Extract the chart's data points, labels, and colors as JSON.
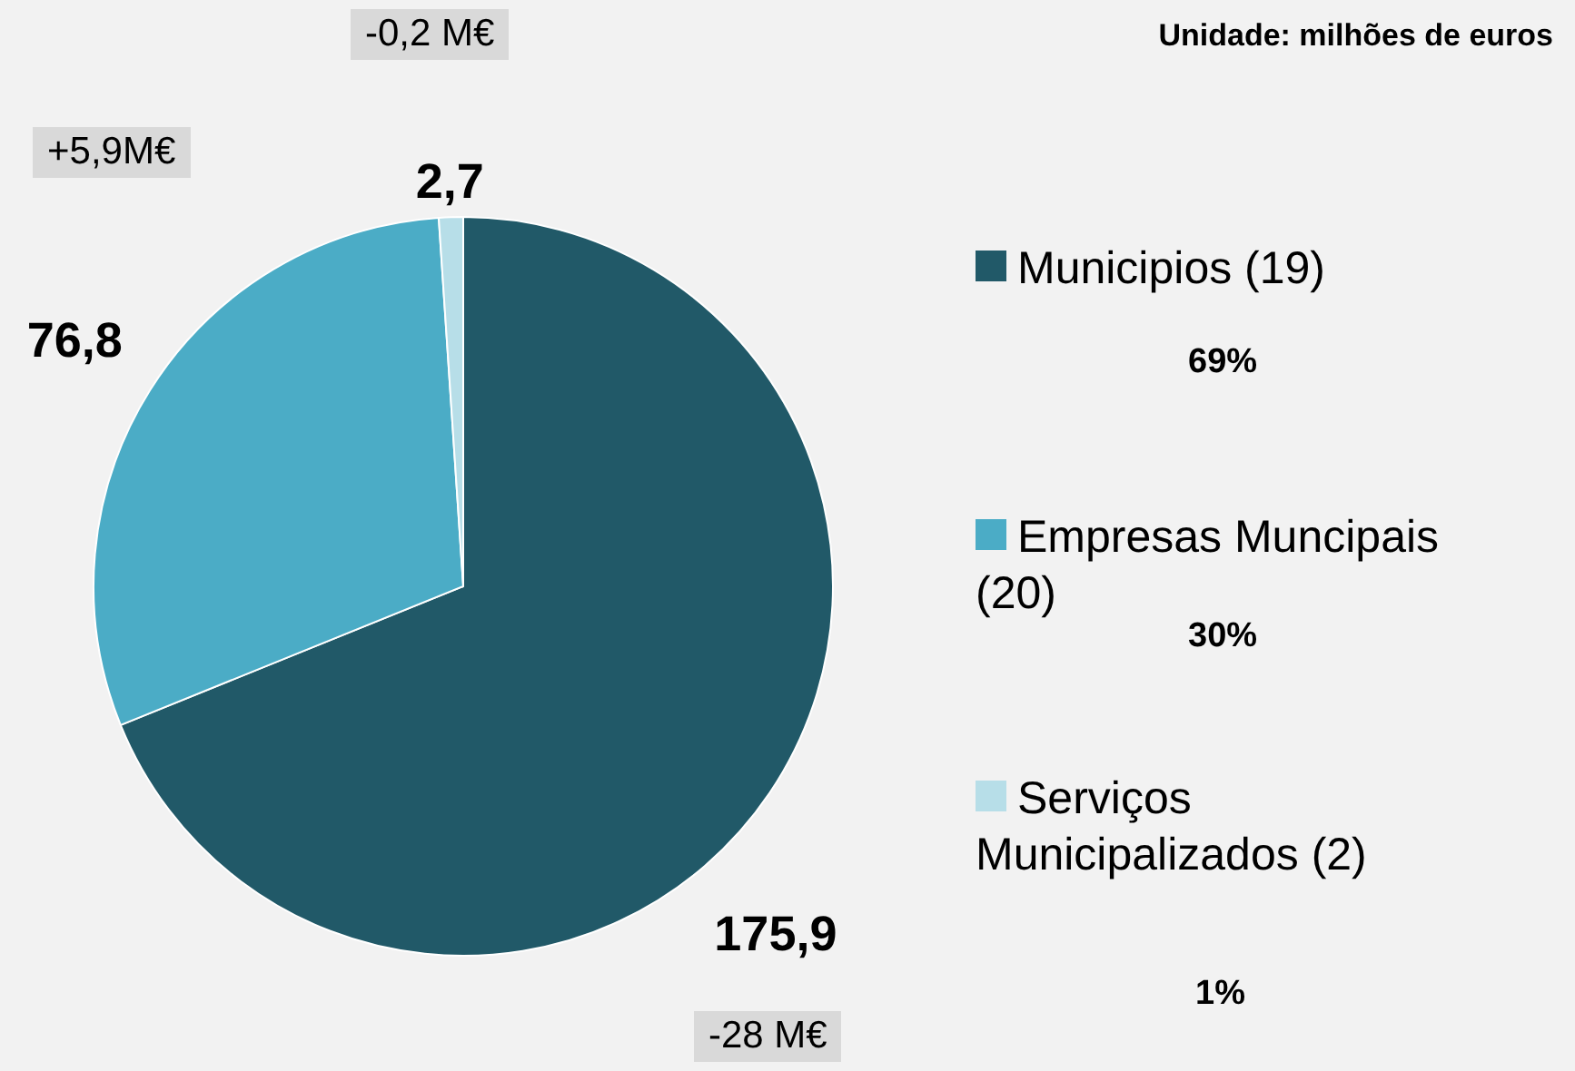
{
  "chart_data": {
    "type": "pie",
    "title": "Unidade: milhões de euros",
    "categories": [
      "Municipios (19)",
      "Empresas Muncipais (20)",
      "Serviços Municipalizados (2)"
    ],
    "values": [
      175.9,
      76.8,
      2.7
    ],
    "value_labels": [
      "175,9",
      "76,8",
      "2,7"
    ],
    "colors": [
      "#215968",
      "#4bacc6",
      "#b7dee8"
    ],
    "legend": "right",
    "annotations": [
      "69%",
      "30%",
      "1%",
      "-28 M€",
      "+5,9M€",
      "-0,2 M€"
    ]
  }
}
